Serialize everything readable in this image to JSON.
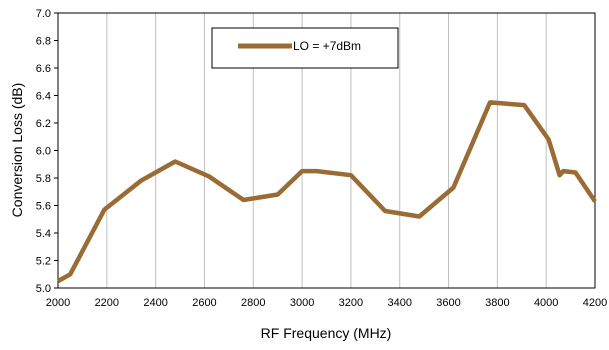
{
  "chart_data": {
    "type": "line",
    "title": "",
    "xlabel": "RF Frequency (MHz)",
    "ylabel": "Conversion Loss (dB)",
    "xlim": [
      2000,
      4200
    ],
    "ylim": [
      5.0,
      7.0
    ],
    "x_ticks": [
      "2000",
      "2200",
      "2400",
      "2600",
      "2800",
      "3000",
      "3200",
      "3400",
      "3600",
      "3800",
      "4000",
      "4200"
    ],
    "y_ticks": [
      "5.0",
      "5.2",
      "5.4",
      "5.6",
      "5.8",
      "6.0",
      "6.2",
      "6.4",
      "6.6",
      "6.8",
      "7.0"
    ],
    "grid": "vertical",
    "legend_position": "top-left",
    "line_color": "#9b6b35",
    "series": [
      {
        "name": "LO = +7dBm",
        "points": [
          [
            2000,
            5.05
          ],
          [
            2050,
            5.1
          ],
          [
            2190,
            5.57
          ],
          [
            2340,
            5.78
          ],
          [
            2480,
            5.92
          ],
          [
            2620,
            5.81
          ],
          [
            2760,
            5.64
          ],
          [
            2900,
            5.68
          ],
          [
            3000,
            5.85
          ],
          [
            3060,
            5.85
          ],
          [
            3200,
            5.82
          ],
          [
            3340,
            5.56
          ],
          [
            3480,
            5.52
          ],
          [
            3620,
            5.73
          ],
          [
            3770,
            6.35
          ],
          [
            3910,
            6.33
          ],
          [
            4010,
            6.08
          ],
          [
            4055,
            5.82
          ],
          [
            4070,
            5.85
          ],
          [
            4120,
            5.84
          ],
          [
            4200,
            5.63
          ]
        ]
      }
    ]
  }
}
